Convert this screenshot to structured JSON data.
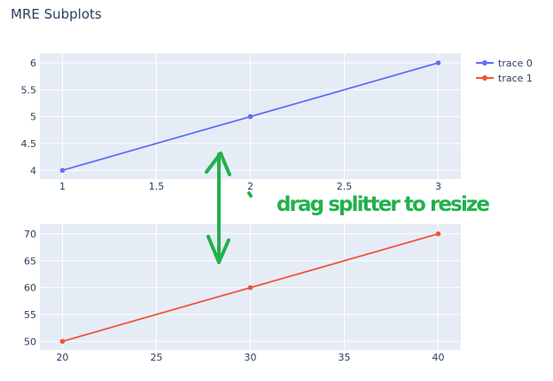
{
  "chart_data": [
    {
      "type": "line",
      "title": "MRE Subplots",
      "series": [
        {
          "name": "trace 0",
          "x": [
            1,
            2,
            3
          ],
          "y": [
            4,
            5,
            6
          ],
          "color": "#636efa"
        }
      ],
      "xticks": [
        "1",
        "1.5",
        "2",
        "2.5",
        "3"
      ],
      "yticks": [
        "4",
        "4.5",
        "5",
        "5.5",
        "6"
      ],
      "xlim": [
        0.88,
        3.12
      ],
      "ylim": [
        3.84,
        6.18
      ],
      "grid": true,
      "legend": "top-right"
    },
    {
      "type": "line",
      "series": [
        {
          "name": "trace 1",
          "x": [
            20,
            30,
            40
          ],
          "y": [
            50,
            60,
            70
          ],
          "color": "#ef553b"
        }
      ],
      "xticks": [
        "20",
        "25",
        "30",
        "35",
        "40"
      ],
      "yticks": [
        "50",
        "55",
        "60",
        "65",
        "70"
      ],
      "xlim": [
        18.8,
        41.2
      ],
      "ylim": [
        48.4,
        71.8
      ],
      "grid": true
    }
  ],
  "annotation": {
    "text": "drag splitter to resize",
    "color": "#22b14c"
  },
  "colors": {
    "plot_bg": "#e5ecf6",
    "text": "#2a3f5f"
  }
}
